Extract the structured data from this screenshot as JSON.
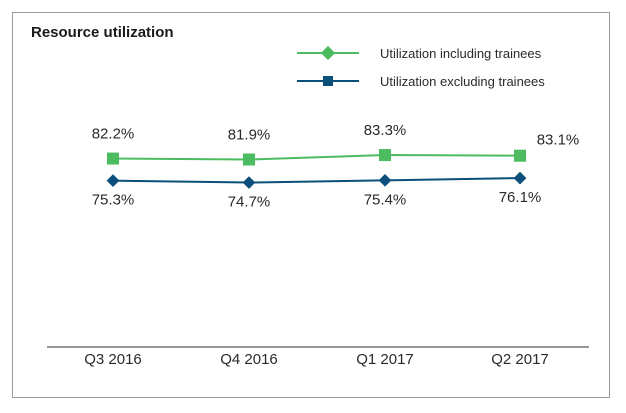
{
  "colors": {
    "including": "#4dbb5f",
    "excluding": "#0b4f7a",
    "axis": "#333333",
    "border": "#9a9a9a"
  },
  "chart_data": {
    "type": "line",
    "title": "Resource utilization",
    "categories": [
      "Q3 2016",
      "Q4 2016",
      "Q1 2017",
      "Q2 2017"
    ],
    "series": [
      {
        "name": "Utilization including trainees",
        "marker": "square",
        "values": [
          82.2,
          81.9,
          83.3,
          83.1
        ],
        "labels": [
          "82.2%",
          "81.9%",
          "83.3%",
          "83.1%"
        ]
      },
      {
        "name": "Utilization excluding trainees",
        "marker": "diamond",
        "values": [
          75.3,
          74.7,
          75.4,
          76.1
        ],
        "labels": [
          "75.3%",
          "74.7%",
          "75.4%",
          "76.1%"
        ]
      }
    ],
    "legend": "top-right",
    "grid": false
  }
}
